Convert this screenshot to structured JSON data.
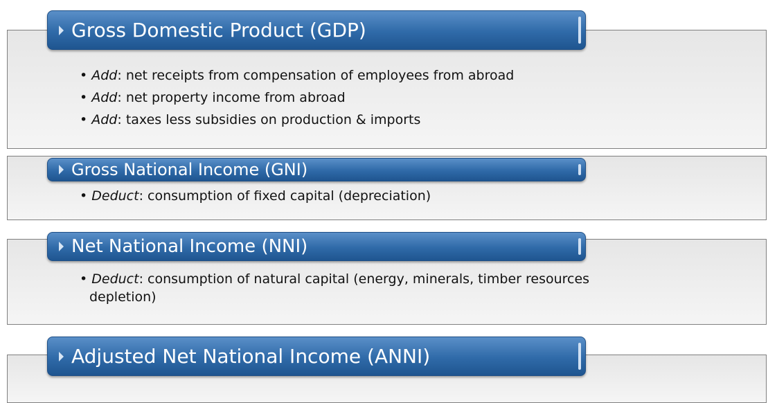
{
  "sections": [
    {
      "title": "Gross Domestic Product (GDP)",
      "items": [
        {
          "label": "Add",
          "text": ": net receipts from compensation of employees from abroad"
        },
        {
          "label": "Add",
          "text": ": net property income from abroad"
        },
        {
          "label": "Add",
          "text": ": taxes less subsidies on production & imports"
        }
      ]
    },
    {
      "title": "Gross National Income (GNI)",
      "items": [
        {
          "label": "Deduct",
          "text": ": consumption of fixed capital (depreciation)"
        }
      ]
    },
    {
      "title": "Net National Income (NNI)",
      "items": [
        {
          "label": "Deduct",
          "text": ": consumption of natural capital (energy, minerals, timber resources depletion)"
        }
      ]
    },
    {
      "title": "Adjusted Net National Income (ANNI)",
      "items": []
    }
  ]
}
